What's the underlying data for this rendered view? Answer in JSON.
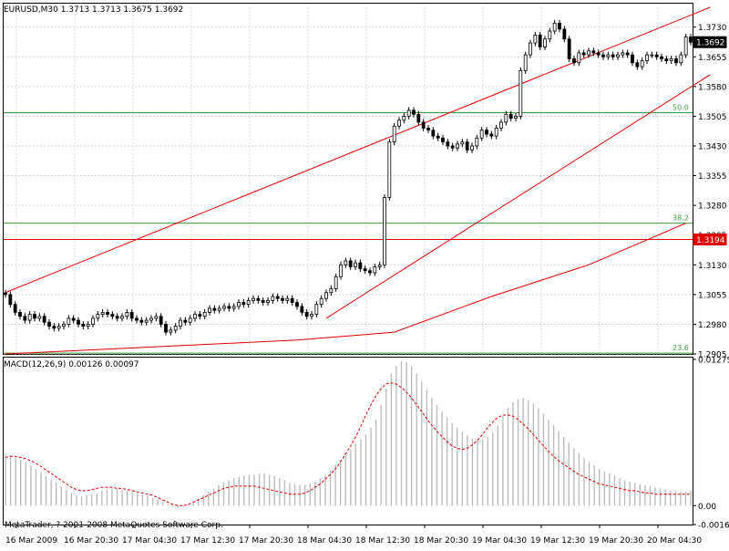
{
  "symbol_header": "EURUSD,M30  1.3713 1.3713 1.3675 1.3692",
  "copyright": "MetaTrader, ? 2001-2008 MetaQuotes Software Corp.",
  "chart_data": [
    {
      "type": "candlestick",
      "title": "EURUSD,M30",
      "ohlc_header": {
        "open": 1.3713,
        "high": 1.3713,
        "low": 1.3675,
        "close": 1.3692
      },
      "ylim": [
        1.2905,
        1.378
      ],
      "y_ticks": [
        "1.3730",
        "1.3655",
        "1.3580",
        "1.3505",
        "1.3430",
        "1.3355",
        "1.3280",
        "1.3205",
        "1.3130",
        "1.3055",
        "1.2980",
        "1.2905"
      ],
      "current_price_label": "1.3692",
      "current_price": 1.3692,
      "horizontal_line_label": "1.3194",
      "horizontal_line_value": 1.3194,
      "fibo_levels": [
        {
          "label": "50.0",
          "value": 1.3514
        },
        {
          "label": "38.2",
          "value": 1.3235
        },
        {
          "label": "23.6",
          "value": 1.2907
        }
      ],
      "x_tick_labels": [
        "16 Mar 2009",
        "16 Mar 20:30",
        "17 Mar 04:30",
        "17 Mar 12:30",
        "17 Mar 20:30",
        "18 Mar 04:30",
        "18 Mar 12:30",
        "18 Mar 20:30",
        "19 Mar 04:30",
        "19 Mar 12:30",
        "19 Mar 20:30",
        "20 Mar 04:30"
      ],
      "candle_closes": [
        1.3055,
        1.303,
        1.301,
        1.3,
        1.299,
        1.3005,
        1.2995,
        1.3,
        1.2985,
        1.2975,
        1.297,
        1.2975,
        1.298,
        1.2995,
        1.299,
        1.298,
        1.2975,
        1.298,
        1.2995,
        1.3005,
        1.301,
        1.3005,
        1.3,
        1.2995,
        1.3,
        1.301,
        1.2995,
        1.299,
        1.2985,
        1.299,
        1.2995,
        1.3,
        1.298,
        1.296,
        1.2965,
        1.2975,
        1.299,
        1.2985,
        1.2995,
        1.3005,
        1.3,
        1.301,
        1.302,
        1.3015,
        1.302,
        1.3025,
        1.302,
        1.3025,
        1.3035,
        1.303,
        1.304,
        1.3045,
        1.304,
        1.3035,
        1.304,
        1.305,
        1.3045,
        1.304,
        1.3045,
        1.3035,
        1.3025,
        1.301,
        1.3,
        1.3005,
        1.303,
        1.3045,
        1.306,
        1.307,
        1.31,
        1.313,
        1.314,
        1.3125,
        1.3135,
        1.312,
        1.3115,
        1.311,
        1.3125,
        1.313,
        1.33,
        1.344,
        1.348,
        1.3495,
        1.3505,
        1.352,
        1.351,
        1.349,
        1.3475,
        1.347,
        1.3455,
        1.345,
        1.344,
        1.343,
        1.3425,
        1.3435,
        1.344,
        1.342,
        1.343,
        1.345,
        1.347,
        1.346,
        1.3455,
        1.3475,
        1.349,
        1.351,
        1.35,
        1.3505,
        1.362,
        1.366,
        1.369,
        1.371,
        1.368,
        1.37,
        1.372,
        1.374,
        1.3725,
        1.37,
        1.365,
        1.364,
        1.3665,
        1.366,
        1.367,
        1.3665,
        1.366,
        1.3655,
        1.366,
        1.3655,
        1.366,
        1.3665,
        1.366,
        1.364,
        1.363,
        1.3645,
        1.366,
        1.366,
        1.3655,
        1.365,
        1.3645,
        1.365,
        1.364,
        1.366,
        1.3705,
        1.3692
      ],
      "moving_average": [
        {
          "x": 0,
          "y": 1.2905
        },
        {
          "x": 60,
          "y": 1.294
        },
        {
          "x": 80,
          "y": 1.296
        },
        {
          "x": 100,
          "y": 1.305
        },
        {
          "x": 120,
          "y": 1.313
        },
        {
          "x": 140,
          "y": 1.3235
        }
      ],
      "trend_channel": [
        {
          "x1": 0,
          "y1": 1.306,
          "x2": 145,
          "y2": 1.378
        },
        {
          "x1": 66,
          "y1": 1.2995,
          "x2": 145,
          "y2": 1.361
        }
      ]
    },
    {
      "type": "bar+line",
      "title": "MACD(12,26,9) 0.00126 0.00097",
      "ylim": [
        -0.00165,
        0.01275
      ],
      "y_ticks": [
        "0.01275",
        "0.00",
        "-0.00165"
      ],
      "x_tick_labels": [
        "16 Mar 2009",
        "16 Mar 20:30",
        "17 Mar 04:30",
        "17 Mar 12:30",
        "17 Mar 20:30",
        "18 Mar 04:30",
        "18 Mar 12:30",
        "18 Mar 20:30",
        "19 Mar 04:30",
        "19 Mar 12:30",
        "19 Mar 20:30",
        "20 Mar 04:30"
      ],
      "series": [
        {
          "name": "MACD",
          "values": [
            0.0045,
            0.0044,
            0.0042,
            0.004,
            0.0038,
            0.0035,
            0.0032,
            0.0029,
            0.0026,
            0.0023,
            0.002,
            0.0017,
            0.0014,
            0.0011,
            0.0009,
            0.0008,
            0.0009,
            0.001,
            0.0011,
            0.0013,
            0.0014,
            0.0015,
            0.0015,
            0.0014,
            0.0013,
            0.0012,
            0.0011,
            0.001,
            0.0009,
            0.0007,
            0.0005,
            0.0003,
            0.0001,
            -0.0001,
            -0.0002,
            -0.0001,
            0.0001,
            0.0003,
            0.0006,
            0.0009,
            0.0012,
            0.0015,
            0.0018,
            0.002,
            0.0022,
            0.0024,
            0.0025,
            0.0026,
            0.0027,
            0.0027,
            0.0028,
            0.0028,
            0.0027,
            0.0026,
            0.0024,
            0.0022,
            0.002,
            0.0019,
            0.0018,
            0.0018,
            0.0019,
            0.0021,
            0.0024,
            0.0027,
            0.0031,
            0.0036,
            0.004,
            0.0045,
            0.0049,
            0.0054,
            0.0058,
            0.0062,
            0.0068,
            0.0075,
            0.0088,
            0.0102,
            0.0115,
            0.0122,
            0.0126,
            0.0125,
            0.0121,
            0.0115,
            0.0108,
            0.0101,
            0.0094,
            0.0088,
            0.0082,
            0.0077,
            0.0072,
            0.0068,
            0.0064,
            0.0061,
            0.0058,
            0.0057,
            0.0058,
            0.006,
            0.0064,
            0.007,
            0.0078,
            0.0085,
            0.009,
            0.0093,
            0.0094,
            0.0092,
            0.0089,
            0.0085,
            0.008,
            0.0075,
            0.007,
            0.0065,
            0.006,
            0.0055,
            0.005,
            0.0046,
            0.0042,
            0.0038,
            0.0035,
            0.0032,
            0.003,
            0.0028,
            0.0026,
            0.0024,
            0.0022,
            0.0021,
            0.002,
            0.0019,
            0.0018,
            0.0017,
            0.0016,
            0.0015,
            0.0014,
            0.0013,
            0.0013,
            0.0012,
            0.0012,
            0.0013
          ]
        },
        {
          "name": "Signal",
          "values": [
            0.0042,
            0.0043,
            0.0043,
            0.0042,
            0.0041,
            0.0039,
            0.0037,
            0.0034,
            0.0031,
            0.0028,
            0.0025,
            0.0022,
            0.0019,
            0.0016,
            0.0014,
            0.0013,
            0.0013,
            0.0014,
            0.0015,
            0.0016,
            0.0016,
            0.0016,
            0.0015,
            0.0015,
            0.0014,
            0.0013,
            0.0012,
            0.0011,
            0.001,
            0.0009,
            0.0007,
            0.0005,
            0.0003,
            0.0001,
            0.0,
            0.0,
            0.0001,
            0.0003,
            0.0005,
            0.0007,
            0.0009,
            0.0011,
            0.0013,
            0.0015,
            0.0016,
            0.0017,
            0.0017,
            0.0017,
            0.0017,
            0.0017,
            0.0016,
            0.0015,
            0.0014,
            0.0013,
            0.0012,
            0.0011,
            0.001,
            0.001,
            0.001,
            0.0011,
            0.0013,
            0.0016,
            0.0019,
            0.0023,
            0.0027,
            0.0032,
            0.0038,
            0.0045,
            0.0052,
            0.006,
            0.0069,
            0.0079,
            0.0088,
            0.0096,
            0.0102,
            0.0106,
            0.0107,
            0.0106,
            0.0103,
            0.0099,
            0.0094,
            0.0088,
            0.0082,
            0.0076,
            0.007,
            0.0065,
            0.006,
            0.0056,
            0.0052,
            0.005,
            0.0049,
            0.005,
            0.0053,
            0.0057,
            0.0062,
            0.0068,
            0.0073,
            0.0077,
            0.0079,
            0.0079,
            0.0078,
            0.0075,
            0.0071,
            0.0067,
            0.0062,
            0.0057,
            0.0052,
            0.0047,
            0.0043,
            0.0039,
            0.0036,
            0.0033,
            0.003,
            0.0027,
            0.0025,
            0.0023,
            0.0021,
            0.0019,
            0.0018,
            0.0017,
            0.0016,
            0.0015,
            0.0014,
            0.0013,
            0.0013,
            0.0012,
            0.0011,
            0.0011,
            0.001,
            0.001,
            0.001,
            0.001,
            0.001,
            0.001,
            0.001,
            0.001
          ]
        }
      ]
    }
  ]
}
